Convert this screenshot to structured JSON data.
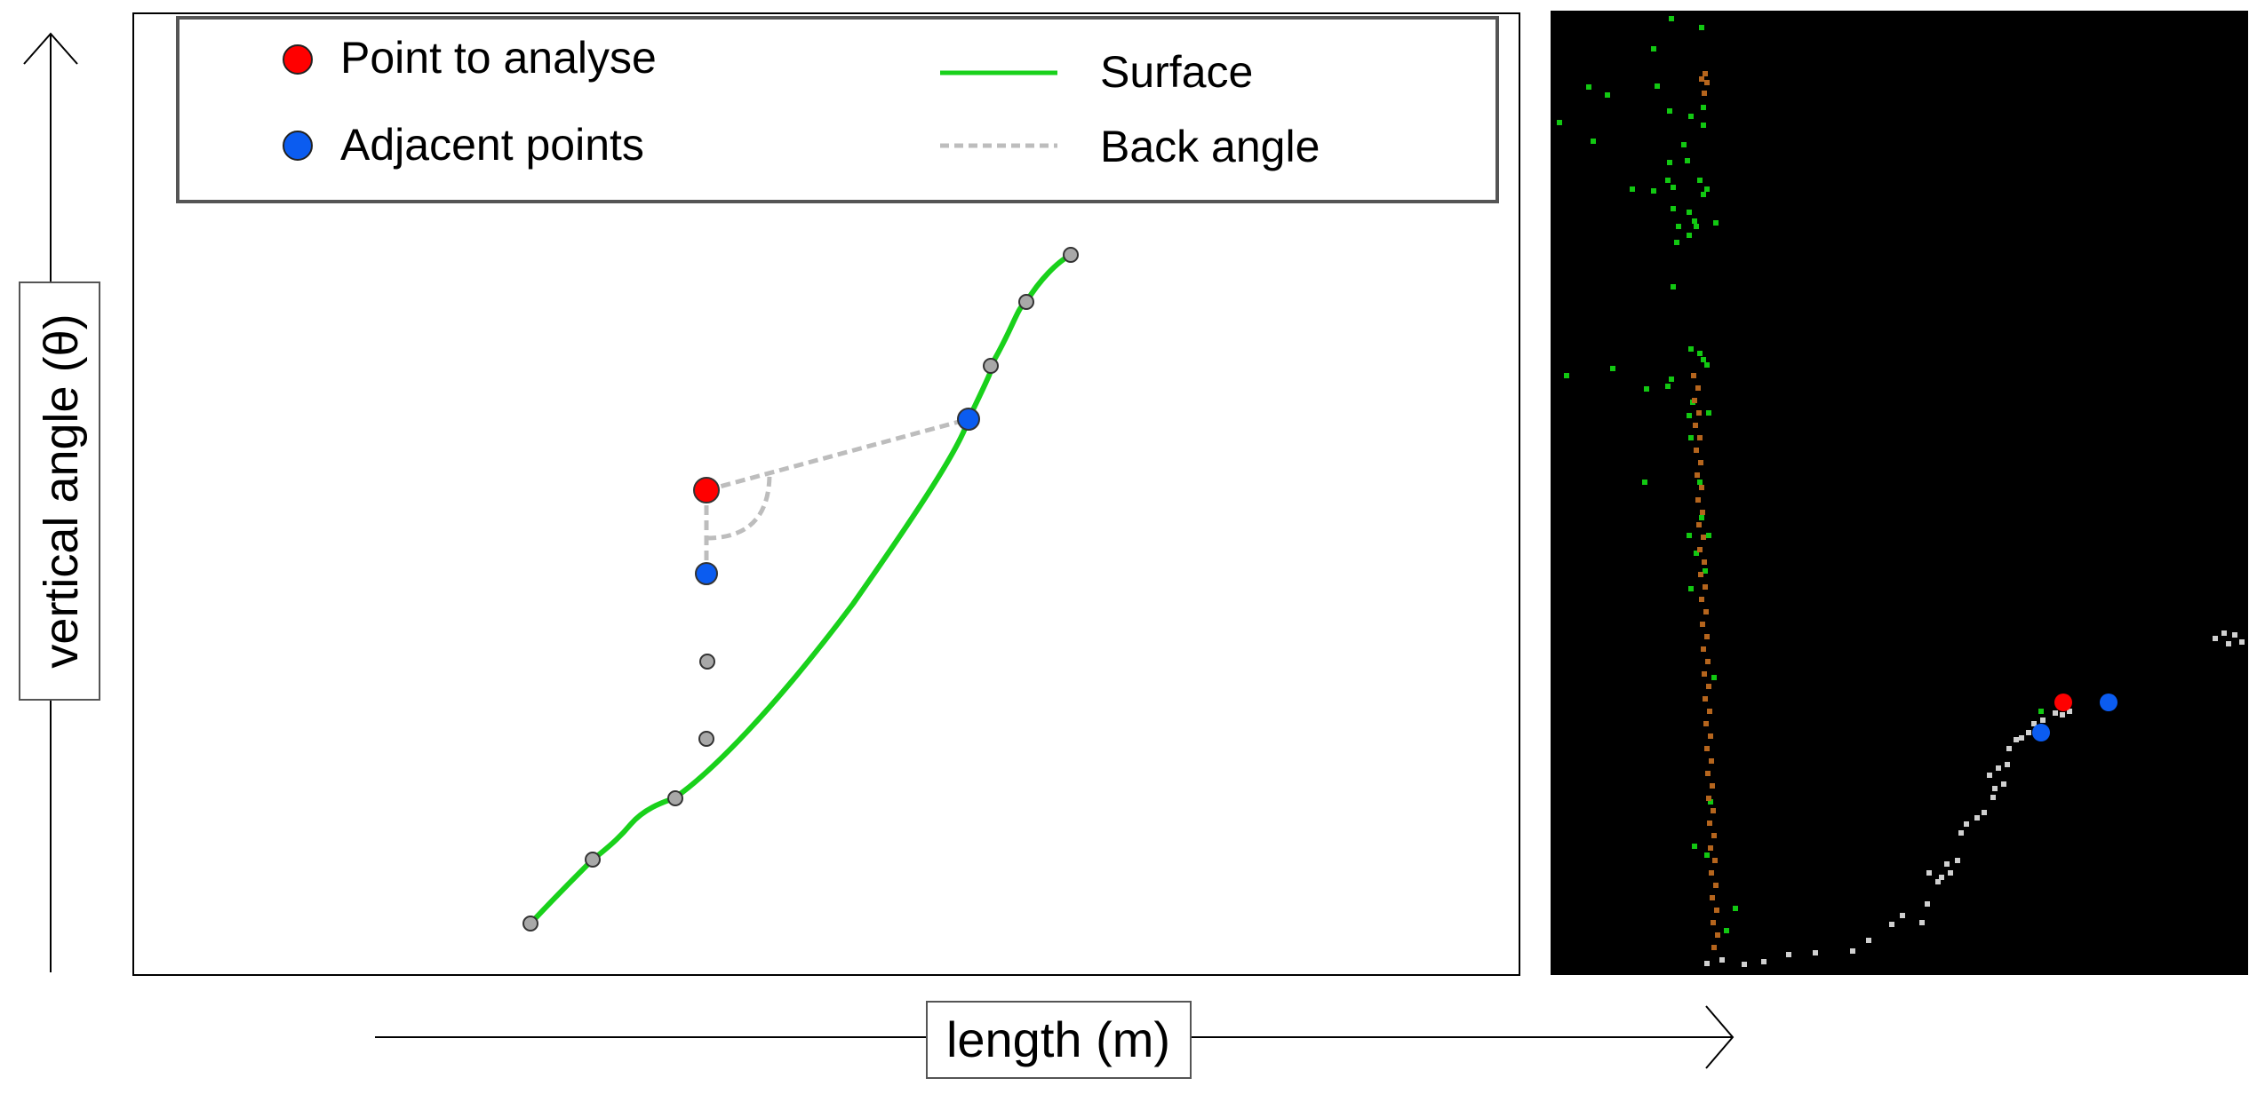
{
  "legend": {
    "point_to_analyse": {
      "label": "Point to analyse",
      "color": "#ff0000"
    },
    "adjacent_points": {
      "label": "Adjacent points",
      "color": "#0b5cf0"
    },
    "surface": {
      "label": "Surface",
      "color": "#19d11b"
    },
    "back_angle": {
      "label": "Back angle",
      "color": "#bdbdbd"
    }
  },
  "axes": {
    "y_label": "vertical angle (θ)",
    "x_label": "length (m)"
  },
  "colors": {
    "surface_point": "#a8a8a8",
    "scan_background": "#000000",
    "scan_vegetation": "#12c812",
    "scan_trunk": "#b5651d",
    "scan_ground": "#d0d0d0"
  }
}
